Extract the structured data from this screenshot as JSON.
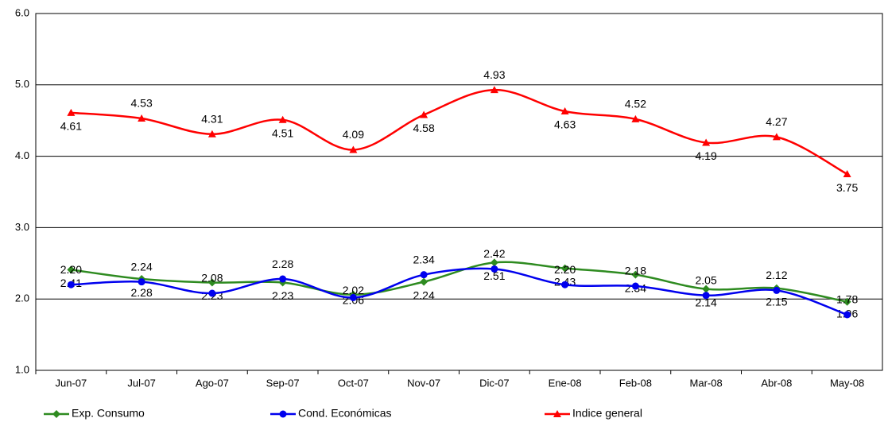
{
  "chart_data": {
    "type": "line",
    "categories": [
      "Jun-07",
      "Jul-07",
      "Ago-07",
      "Sep-07",
      "Oct-07",
      "Nov-07",
      "Dic-07",
      "Ene-08",
      "Feb-08",
      "Mar-08",
      "Abr-08",
      "May-08"
    ],
    "series": [
      {
        "name": "Exp. Consumo",
        "color": "#2e8b20",
        "marker": "diamond",
        "values": [
          2.41,
          2.28,
          2.23,
          2.23,
          2.06,
          2.24,
          2.51,
          2.43,
          2.34,
          2.14,
          2.15,
          1.96
        ],
        "value_labels": [
          "2.41",
          "2.28",
          "2.23",
          "2.23",
          "2.06",
          "2.24",
          "2.51",
          "2.43",
          "2.34",
          "2.14",
          "2.15",
          "1.96"
        ]
      },
      {
        "name": "Cond. Económicas",
        "color": "#0000ee",
        "marker": "circle",
        "values": [
          2.2,
          2.24,
          2.08,
          2.28,
          2.02,
          2.34,
          2.42,
          2.2,
          2.18,
          2.05,
          2.12,
          1.78
        ],
        "value_labels": [
          "2.20",
          "2.24",
          "2.08",
          "2.28",
          "2.02",
          "2.34",
          "2.42",
          "2.20",
          "2.18",
          "2.05",
          "2.12",
          "1.78"
        ]
      },
      {
        "name": "Indice general",
        "color": "#ff0000",
        "marker": "triangle",
        "values": [
          4.61,
          4.53,
          4.31,
          4.51,
          4.09,
          4.58,
          4.93,
          4.63,
          4.52,
          4.19,
          4.27,
          3.75
        ],
        "value_labels": [
          "4.61",
          "4.53",
          "4.31",
          "4.51",
          "4.09",
          "4.58",
          "4.93",
          "4.63",
          "4.52",
          "4.19",
          "4.27",
          "3.75"
        ]
      }
    ],
    "ylim": [
      1,
      6
    ],
    "yticks": [
      {
        "value": 1,
        "label": "1.0"
      },
      {
        "value": 2,
        "label": "2.0"
      },
      {
        "value": 3,
        "label": "3.0"
      },
      {
        "value": 4,
        "label": "4.0"
      },
      {
        "value": 5,
        "label": "5.0"
      },
      {
        "value": 6,
        "label": "6.0"
      }
    ],
    "grid": true,
    "smooth": true,
    "legend": "bottom"
  }
}
